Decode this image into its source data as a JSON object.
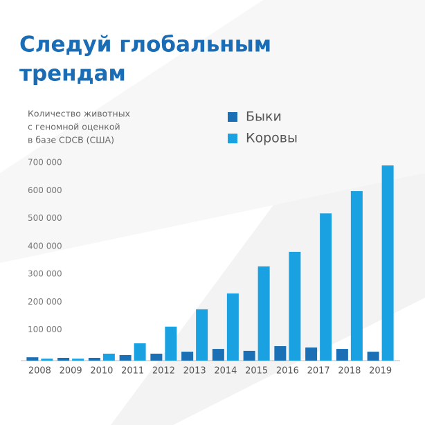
{
  "chart_data": {
    "type": "bar",
    "title": [
      "Следуй глобальным",
      "трендам"
    ],
    "ylabel": [
      "Количество животных",
      "с геномной оценкой",
      "в базе CDCB (США)"
    ],
    "categories": [
      "2008",
      "2009",
      "2010",
      "2011",
      "2012",
      "2013",
      "2014",
      "2015",
      "2016",
      "2017",
      "2018",
      "2019"
    ],
    "series": [
      {
        "name": "Быки",
        "color": "#1a6fb5",
        "values": [
          12000,
          10000,
          10000,
          20000,
          25000,
          32000,
          42000,
          35000,
          52000,
          47000,
          42000,
          32000
        ]
      },
      {
        "name": "Коровы",
        "color": "#19a1e1",
        "values": [
          7000,
          7000,
          25000,
          62000,
          122000,
          184000,
          241000,
          338000,
          390000,
          528000,
          608000,
          700000
        ]
      }
    ],
    "ylim": [
      0,
      700000
    ],
    "yticks": [
      {
        "value": 100000,
        "label": "100 000"
      },
      {
        "value": 200000,
        "label": "200 000"
      },
      {
        "value": 300000,
        "label": "300 000"
      },
      {
        "value": 400000,
        "label": "400 000"
      },
      {
        "value": 500000,
        "label": "500 000"
      },
      {
        "value": 600000,
        "label": "600 000"
      },
      {
        "value": 700000,
        "label": "700 000"
      }
    ],
    "grid": false,
    "legend": "top"
  }
}
